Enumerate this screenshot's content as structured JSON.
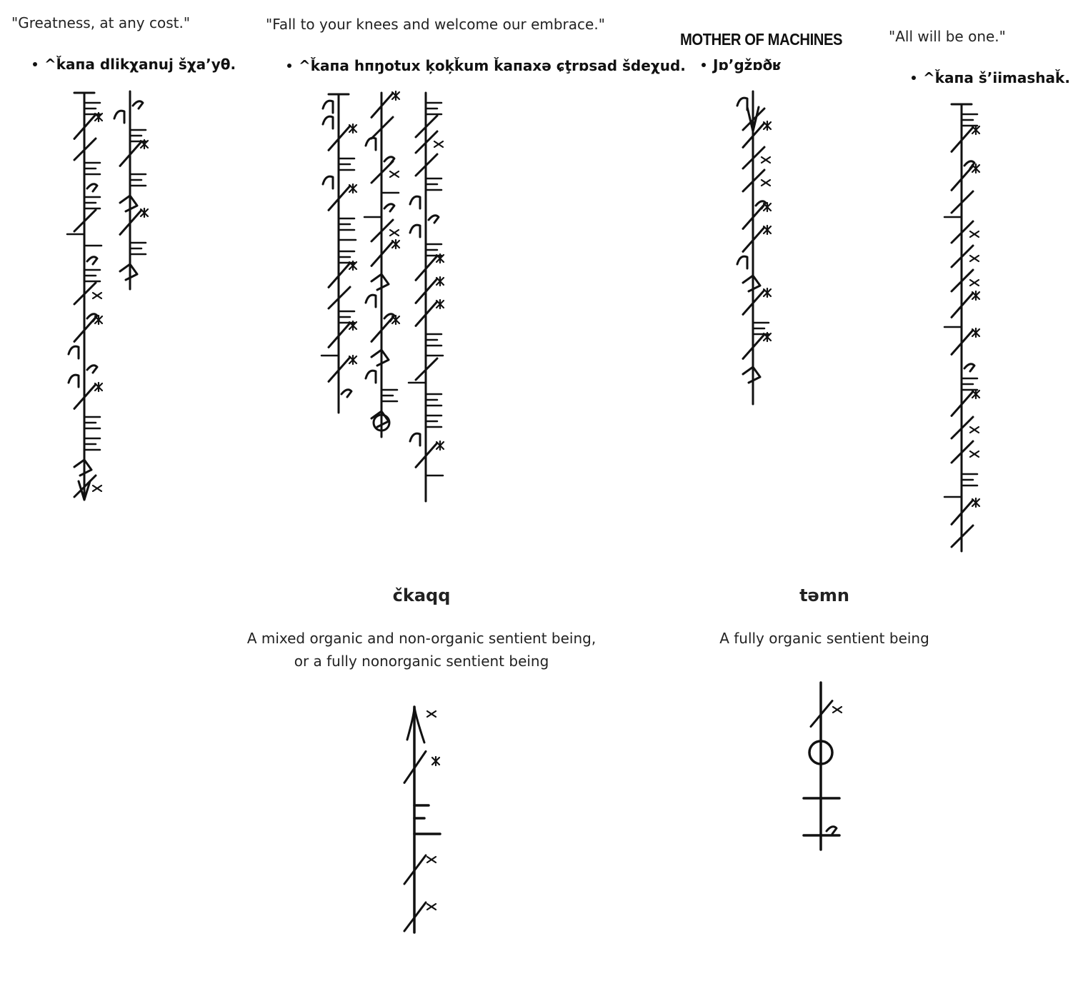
{
  "section_greatness": {
    "quote": "\"Greatness, at any cost.\"",
    "bullet": "^ǩaпa dlikχanuj šχa’yθ."
  },
  "section_fall": {
    "quote": "\"Fall to your knees and welcome our embrace.\"",
    "bullet": "^ǩaпa hпŋotux ķoķǩum ǩaпaxə ɕţrɒsad šdeχud."
  },
  "section_mother": {
    "heading": "MOTHER OF MACHINES",
    "bullet": "Jɒ’gžɒðʁ"
  },
  "section_all": {
    "quote": "\"All will be one.\"",
    "bullet": "^ǩaпa š’iimashaǩ."
  },
  "word_ckaqq": {
    "title": "čkaqq",
    "description_line1": "A mixed organic and non-organic sentient being,",
    "description_line2": "or a fully nonorganic sentient being"
  },
  "word_temn": {
    "title": "təmn",
    "description": "A fully organic sentient being"
  },
  "colors": {
    "ink": "#111111",
    "text": "#222222",
    "background": "#ffffff"
  }
}
